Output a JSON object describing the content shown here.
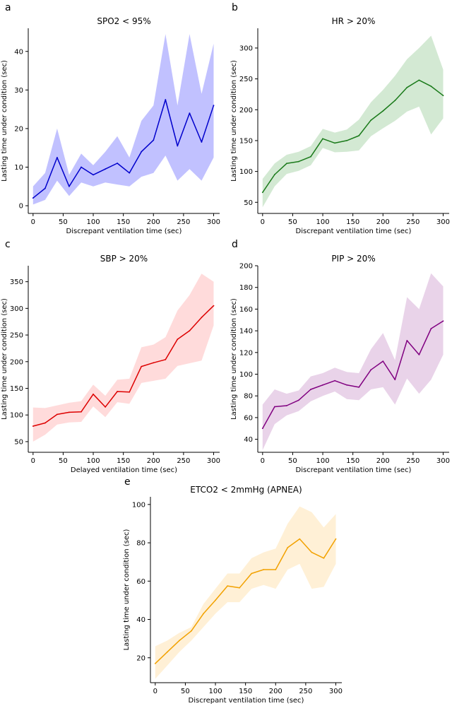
{
  "chart_data": [
    {
      "panel_letter": "a",
      "type": "line",
      "title": "SPO2 < 95%",
      "xlabel": "Discrepant ventilation time (sec)",
      "ylabel": "Lasting time under condition (sec)",
      "xlim": [
        -8,
        310
      ],
      "ylim": [
        -2,
        46
      ],
      "xticks": [
        0,
        50,
        100,
        150,
        200,
        250,
        300
      ],
      "yticks": [
        0,
        10,
        20,
        30,
        40
      ],
      "color": "#0000cc",
      "fill_color": "#4d4dff",
      "x": [
        0,
        20,
        40,
        60,
        80,
        100,
        120,
        140,
        160,
        180,
        200,
        220,
        240,
        260,
        280,
        300
      ],
      "mean": [
        2,
        4.5,
        12.5,
        5,
        10,
        8,
        9.5,
        11,
        8.5,
        14,
        17,
        27.5,
        15.5,
        24,
        16.5,
        26
      ],
      "lower": [
        0.3,
        1.5,
        6.5,
        2.5,
        6,
        5,
        6,
        5.5,
        5,
        7.5,
        8.5,
        13,
        6.5,
        9.5,
        6.5,
        12.5
      ],
      "upper": [
        5,
        8.5,
        20,
        8,
        13.5,
        10.5,
        14,
        18,
        12.5,
        22,
        26,
        44.5,
        26,
        44.5,
        29,
        42
      ]
    },
    {
      "panel_letter": "b",
      "type": "line",
      "title": "HR > 20%",
      "xlabel": "Discrepant ventilation time (sec)",
      "ylabel": "Lasting time under condition (sec)",
      "xlim": [
        -8,
        310
      ],
      "ylim": [
        32,
        332
      ],
      "xticks": [
        0,
        50,
        100,
        150,
        200,
        250,
        300
      ],
      "yticks": [
        50,
        100,
        150,
        200,
        250,
        300
      ],
      "color": "#1a7a1a",
      "fill_color": "#80c080",
      "x": [
        0,
        20,
        40,
        60,
        80,
        100,
        120,
        140,
        160,
        180,
        200,
        220,
        240,
        260,
        280,
        300
      ],
      "mean": [
        66,
        95,
        113,
        116,
        124,
        153,
        146,
        150,
        158,
        183,
        198,
        215,
        236,
        248,
        238,
        223
      ],
      "lower": [
        42,
        76,
        96,
        101,
        110,
        138,
        131,
        132,
        134,
        157,
        170,
        182,
        197,
        205,
        160,
        186
      ],
      "upper": [
        88,
        113,
        127,
        132,
        141,
        169,
        163,
        168,
        184,
        212,
        232,
        255,
        282,
        300,
        320,
        265
      ]
    },
    {
      "panel_letter": "c",
      "type": "line",
      "title": "SBP > 20%",
      "xlabel": "Delayed ventilation time (sec)",
      "ylabel": "Lasting time under condition (sec)",
      "xlim": [
        -8,
        310
      ],
      "ylim": [
        30,
        380
      ],
      "xticks": [
        0,
        50,
        100,
        150,
        200,
        250,
        300
      ],
      "yticks": [
        50,
        100,
        150,
        200,
        250,
        300,
        350
      ],
      "color": "#dd0000",
      "fill_color": "#ff9999",
      "x": [
        0,
        20,
        40,
        60,
        80,
        100,
        120,
        140,
        160,
        180,
        200,
        220,
        240,
        260,
        280,
        300
      ],
      "mean": [
        79,
        85,
        101,
        105,
        106,
        139,
        115,
        144,
        143,
        191,
        198,
        204,
        242,
        258,
        283,
        305
      ],
      "lower": [
        50,
        63,
        82,
        86,
        87,
        116,
        96,
        124,
        121,
        160,
        164,
        168,
        192,
        197,
        202,
        268
      ],
      "upper": [
        114,
        113,
        118,
        123,
        126,
        157,
        136,
        166,
        168,
        227,
        232,
        246,
        296,
        325,
        365,
        350
      ]
    },
    {
      "panel_letter": "d",
      "type": "line",
      "title": "PIP > 20%",
      "xlabel": "Discrepant ventilation time (sec)",
      "ylabel": "Lasting time under condition (sec)",
      "xlim": [
        -8,
        310
      ],
      "ylim": [
        28,
        200
      ],
      "xticks": [
        0,
        50,
        100,
        150,
        200,
        250,
        300
      ],
      "yticks": [
        40,
        60,
        80,
        100,
        120,
        140,
        160,
        180,
        200
      ],
      "color": "#800080",
      "fill_color": "#c080c0",
      "x": [
        0,
        20,
        40,
        60,
        80,
        100,
        120,
        140,
        160,
        180,
        200,
        220,
        240,
        260,
        280,
        300
      ],
      "mean": [
        50,
        70,
        71,
        76,
        86,
        90,
        94,
        90,
        88,
        104,
        112,
        95,
        131,
        118,
        142,
        149
      ],
      "lower": [
        30,
        54,
        62,
        66,
        75,
        80,
        84,
        77,
        76,
        86,
        88,
        72,
        96,
        82,
        95,
        118
      ],
      "upper": [
        72,
        86,
        82,
        85,
        98,
        101,
        106,
        102,
        101,
        123,
        138,
        113,
        171,
        160,
        193,
        181
      ]
    },
    {
      "panel_letter": "e",
      "type": "line",
      "title": "ETCO2 < 2mmHg (APNEA)",
      "xlabel": "Discrepant ventilation time (sec)",
      "ylabel": "Lasting time under condition (sec)",
      "xlim": [
        -8,
        310
      ],
      "ylim": [
        7,
        104
      ],
      "xticks": [
        0,
        50,
        100,
        150,
        200,
        250,
        300
      ],
      "yticks": [
        20,
        40,
        60,
        80,
        100
      ],
      "color": "#f2a100",
      "fill_color": "#ffd58a",
      "x": [
        0,
        20,
        40,
        60,
        80,
        100,
        120,
        140,
        160,
        180,
        200,
        220,
        240,
        260,
        280,
        300
      ],
      "mean": [
        17,
        23,
        29,
        34,
        43,
        50,
        57.5,
        56.5,
        64,
        66,
        66,
        77.5,
        82,
        75,
        72,
        82
      ],
      "lower": [
        9,
        16,
        23,
        29,
        36,
        43,
        49,
        49,
        56,
        58,
        56,
        66,
        69,
        56,
        57,
        69
      ],
      "upper": [
        26,
        29,
        33,
        36,
        48,
        56,
        64,
        64,
        72,
        75,
        77,
        90,
        99,
        96,
        88,
        95
      ]
    }
  ]
}
